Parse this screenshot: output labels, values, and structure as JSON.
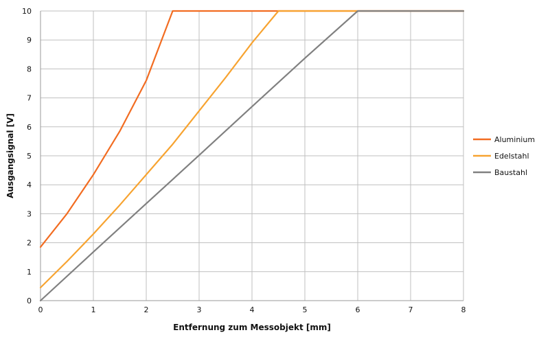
{
  "chart_data": {
    "type": "line",
    "title": "",
    "xlabel": "Entfernung zum Messobjekt [mm]",
    "ylabel": "Ausgangsignal  [V]",
    "xlim": [
      0,
      8
    ],
    "ylim": [
      0,
      10
    ],
    "x_ticks": [
      "0",
      "1",
      "2",
      "3",
      "4",
      "5",
      "6",
      "7",
      "8"
    ],
    "y_ticks": [
      "0",
      "1",
      "2",
      "3",
      "4",
      "5",
      "6",
      "7",
      "8",
      "9",
      "10"
    ],
    "grid": true,
    "legend_position": "right",
    "series": [
      {
        "name": "Aluminium",
        "color": "#f26c21",
        "points": [
          [
            0,
            1.85
          ],
          [
            0.5,
            3.0
          ],
          [
            1,
            4.35
          ],
          [
            1.5,
            5.85
          ],
          [
            2,
            7.6
          ],
          [
            2.5,
            10
          ],
          [
            8,
            10
          ]
        ]
      },
      {
        "name": "Edelstahl",
        "color": "#f7a330",
        "points": [
          [
            0,
            0.45
          ],
          [
            0.5,
            1.35
          ],
          [
            1,
            2.3
          ],
          [
            1.5,
            3.3
          ],
          [
            2,
            4.35
          ],
          [
            2.5,
            5.4
          ],
          [
            3,
            6.55
          ],
          [
            3.5,
            7.7
          ],
          [
            4,
            8.9
          ],
          [
            4.5,
            10
          ],
          [
            8,
            10
          ]
        ]
      },
      {
        "name": "Baustahl",
        "color": "#808080",
        "points": [
          [
            0,
            0
          ],
          [
            1,
            1.68
          ],
          [
            2,
            3.35
          ],
          [
            3,
            5.02
          ],
          [
            4,
            6.7
          ],
          [
            5,
            8.37
          ],
          [
            6,
            10
          ],
          [
            8,
            10
          ]
        ]
      }
    ]
  }
}
